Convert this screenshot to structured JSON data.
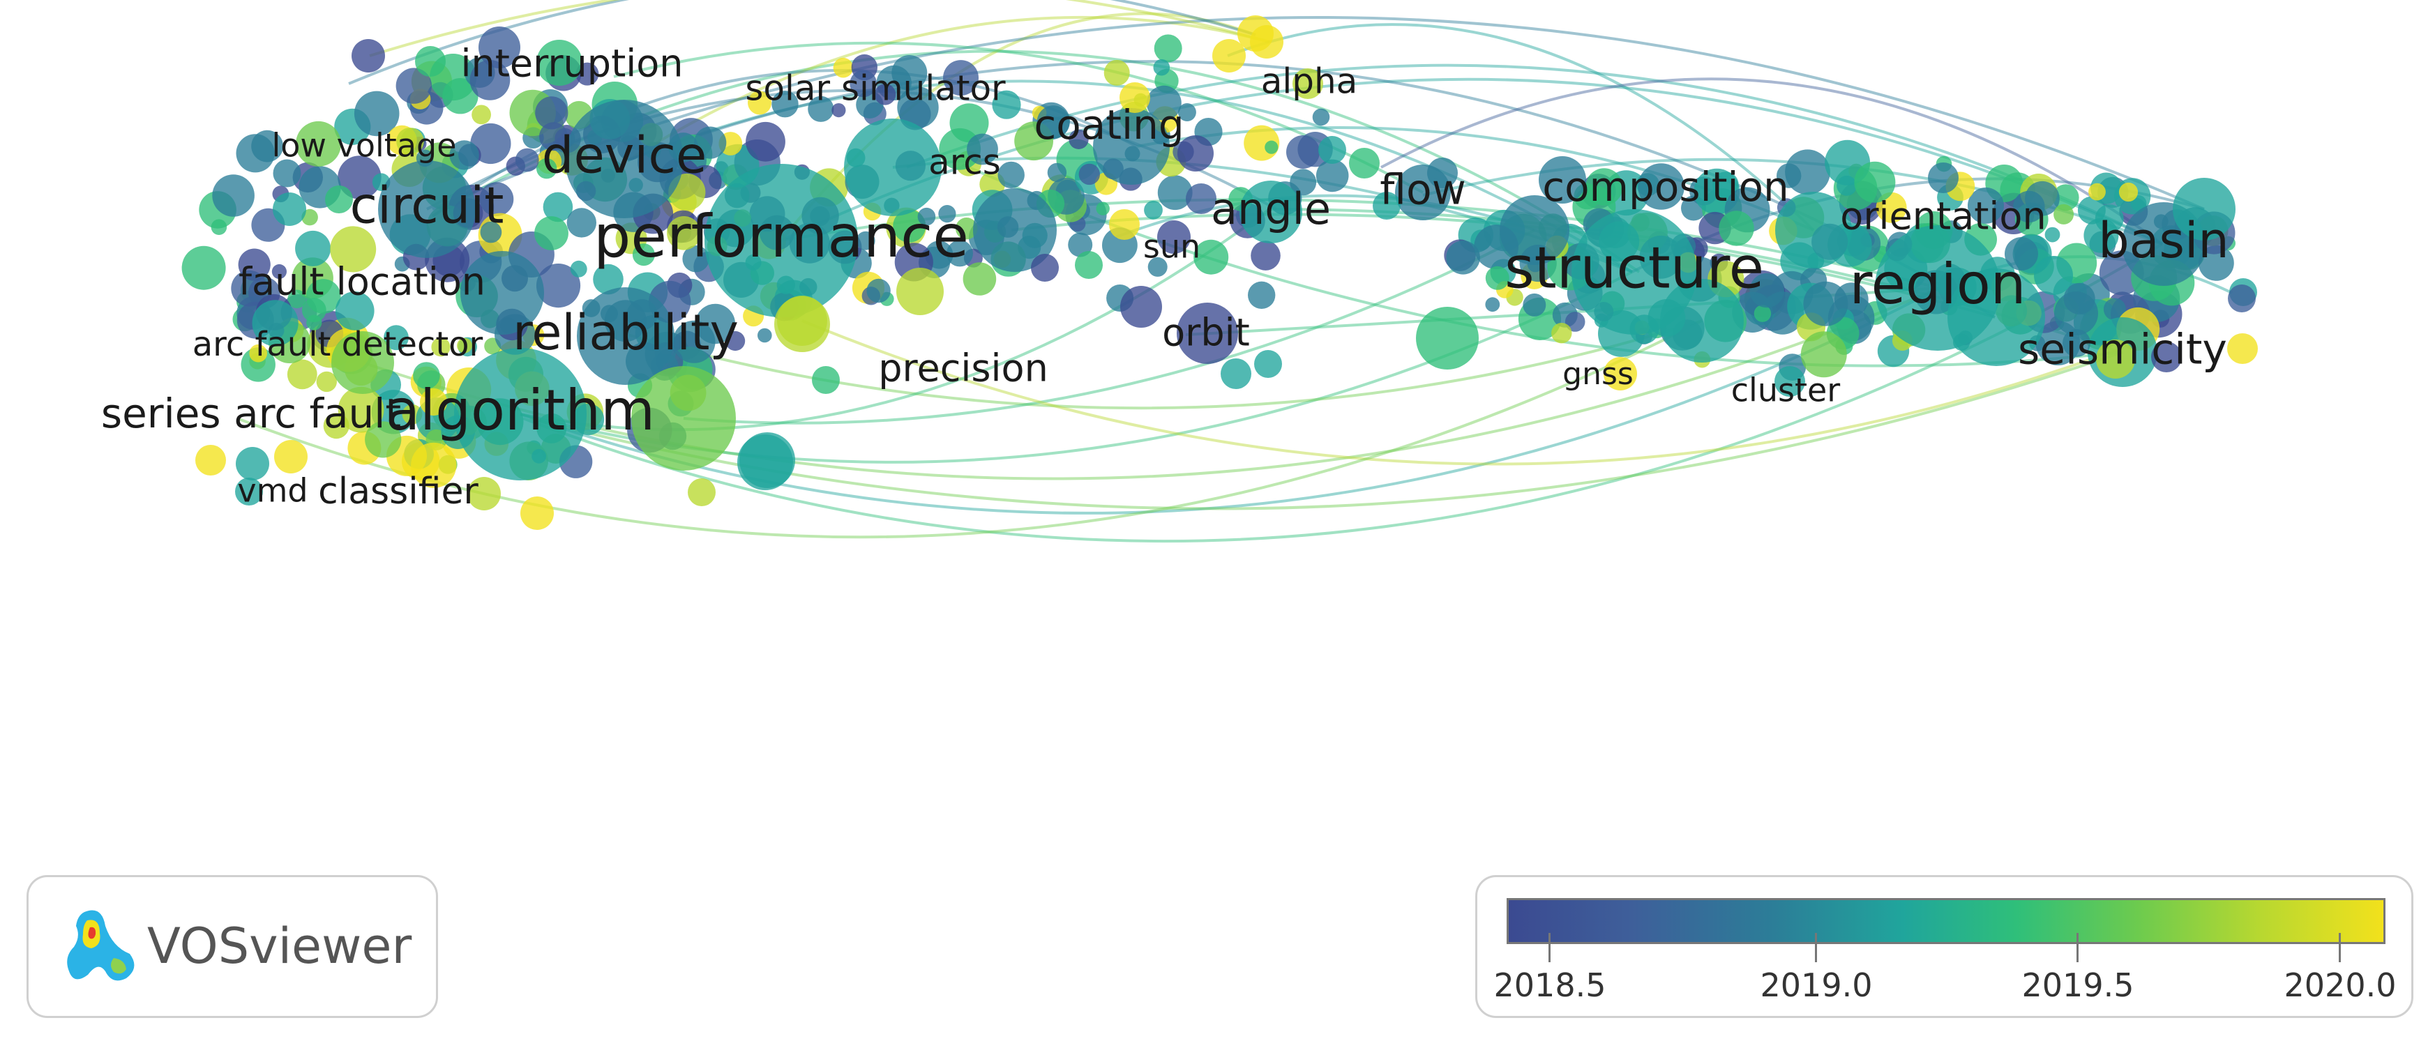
{
  "labels": [
    {
      "text": "interruption",
      "id": "interruption"
    },
    {
      "text": "solar simulator",
      "id": "solar-simulator"
    },
    {
      "text": "alpha",
      "id": "alpha"
    },
    {
      "text": "low voltage",
      "id": "low-voltage"
    },
    {
      "text": "device",
      "id": "device"
    },
    {
      "text": "coating",
      "id": "coating"
    },
    {
      "text": "arcs",
      "id": "arcs"
    },
    {
      "text": "circuit",
      "id": "circuit"
    },
    {
      "text": "performance",
      "id": "performance"
    },
    {
      "text": "angle",
      "id": "angle"
    },
    {
      "text": "flow",
      "id": "flow"
    },
    {
      "text": "composition",
      "id": "composition"
    },
    {
      "text": "orientation",
      "id": "orientation"
    },
    {
      "text": "basin",
      "id": "basin"
    },
    {
      "text": "sun",
      "id": "sun"
    },
    {
      "text": "structure",
      "id": "structure"
    },
    {
      "text": "region",
      "id": "region"
    },
    {
      "text": "fault location",
      "id": "fault-location"
    },
    {
      "text": "reliability",
      "id": "reliability"
    },
    {
      "text": "arc fault detector",
      "id": "arc-fault-detector"
    },
    {
      "text": "orbit",
      "id": "orbit"
    },
    {
      "text": "seismicity",
      "id": "seismicity"
    },
    {
      "text": "precision",
      "id": "precision"
    },
    {
      "text": "gnss",
      "id": "gnss"
    },
    {
      "text": "cluster",
      "id": "cluster"
    },
    {
      "text": "series arc fault",
      "id": "series-arc-fault"
    },
    {
      "text": "algorithm",
      "id": "algorithm"
    },
    {
      "text": "vmd",
      "id": "vmd"
    },
    {
      "text": "classifier",
      "id": "classifier"
    }
  ],
  "logo": {
    "text": "VOSviewer"
  },
  "legend": {
    "ticks": [
      "2018.5",
      "2019.0",
      "2019.5",
      "2020.0"
    ],
    "colors": {
      "start": "#3b4a91",
      "mid": "#20a59c",
      "end": "#f2e11c"
    }
  }
}
